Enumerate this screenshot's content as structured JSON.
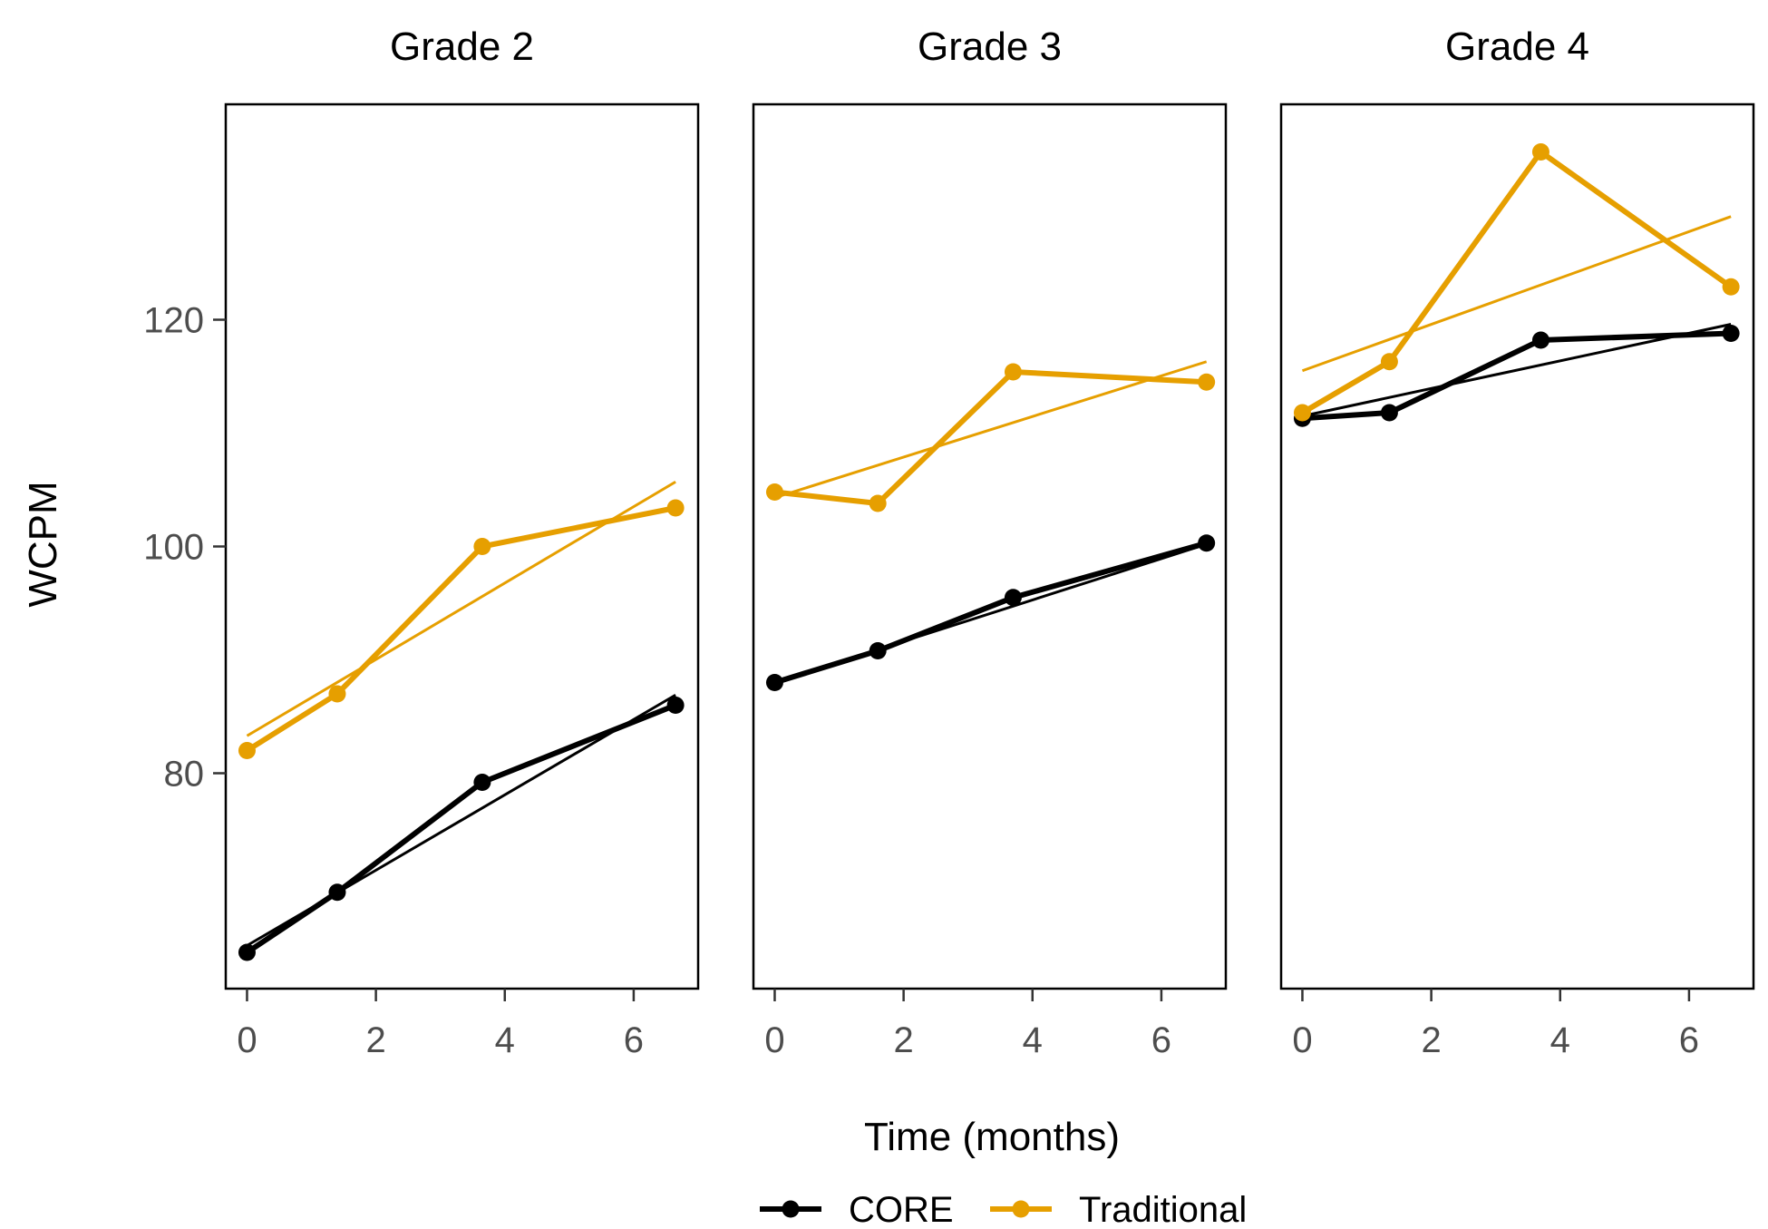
{
  "chart_data": {
    "type": "line",
    "layout": "small-multiples",
    "xlabel": "Time (months)",
    "ylabel": "WCPM",
    "ylim": [
      61,
      139
    ],
    "yticks": [
      80,
      100,
      120
    ],
    "xticks": [
      0,
      2,
      4,
      6
    ],
    "legend": {
      "placement": "bottom-center",
      "entries": [
        {
          "name": "CORE",
          "color": "#000000"
        },
        {
          "name": "Traditional",
          "color": "#E69F00"
        }
      ]
    },
    "panels": [
      {
        "title": "Grade 2",
        "xlim": [
          -0.33,
          7.0
        ],
        "series": [
          {
            "name": "CORE",
            "x": [
              0,
              1.4,
              3.65,
              6.65
            ],
            "y": [
              64.2,
              69.5,
              79.2,
              86.0
            ],
            "trend": [
              [
                0,
                64.8
              ],
              [
                6.65,
                86.9
              ]
            ]
          },
          {
            "name": "Traditional",
            "x": [
              0,
              1.4,
              3.65,
              6.65
            ],
            "y": [
              82.0,
              87.0,
              100.0,
              103.4
            ],
            "trend": [
              [
                0,
                83.3
              ],
              [
                6.65,
                105.7
              ]
            ]
          }
        ]
      },
      {
        "title": "Grade 3",
        "xlim": [
          -0.33,
          7.0
        ],
        "series": [
          {
            "name": "CORE",
            "x": [
              0,
              1.6,
              3.7,
              6.7
            ],
            "y": [
              88.0,
              90.8,
              95.5,
              100.3
            ],
            "trend": [
              [
                0,
                88.0
              ],
              [
                6.7,
                100.2
              ]
            ]
          },
          {
            "name": "Traditional",
            "x": [
              0,
              1.6,
              3.7,
              6.7
            ],
            "y": [
              104.8,
              103.8,
              115.4,
              114.5
            ],
            "trend": [
              [
                0,
                104.3
              ],
              [
                6.7,
                116.3
              ]
            ]
          }
        ]
      },
      {
        "title": "Grade 4",
        "xlim": [
          -0.33,
          7.0
        ],
        "series": [
          {
            "name": "CORE",
            "x": [
              0,
              1.35,
              3.7,
              6.65
            ],
            "y": [
              111.3,
              111.8,
              118.2,
              118.8
            ],
            "trend": [
              [
                0,
                111.5
              ],
              [
                6.65,
                119.6
              ]
            ]
          },
          {
            "name": "Traditional",
            "x": [
              0,
              1.35,
              3.7,
              6.65
            ],
            "y": [
              111.8,
              116.3,
              134.8,
              122.9
            ],
            "trend": [
              [
                0,
                115.5
              ],
              [
                6.65,
                129.1
              ]
            ]
          }
        ]
      }
    ]
  }
}
